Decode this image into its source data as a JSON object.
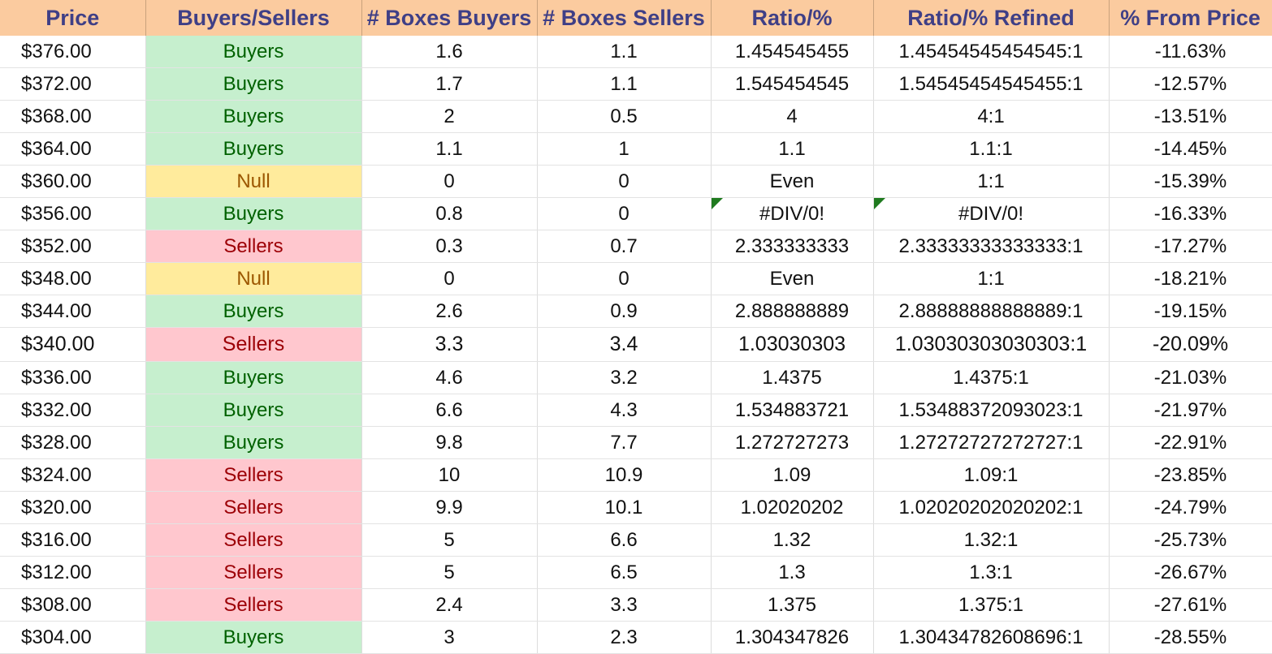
{
  "colors": {
    "header_bg": "#fbcb9f",
    "header_text": "#3f3f86",
    "buyers_bg": "#c6efce",
    "buyers_text": "#006100",
    "sellers_bg": "#ffc7ce",
    "sellers_text": "#9c0006",
    "null_bg": "#ffeb9c",
    "null_text": "#9c5700",
    "error_indicator": "#1f7a1f"
  },
  "table": {
    "headers": [
      "Price",
      "Buyers/Sellers",
      "# Boxes Buyers",
      "# Boxes Sellers",
      "Ratio/%",
      "Ratio/% Refined",
      "% From Price"
    ],
    "rows": [
      {
        "price": "$376.00",
        "side": "Buyers",
        "boxes_buyers": "1.6",
        "boxes_sellers": "1.1",
        "ratio": "1.454545455",
        "ratio_refined": "1.45454545454545:1",
        "from_price": "-11.63%"
      },
      {
        "price": "$372.00",
        "side": "Buyers",
        "boxes_buyers": "1.7",
        "boxes_sellers": "1.1",
        "ratio": "1.545454545",
        "ratio_refined": "1.54545454545455:1",
        "from_price": "-12.57%"
      },
      {
        "price": "$368.00",
        "side": "Buyers",
        "boxes_buyers": "2",
        "boxes_sellers": "0.5",
        "ratio": "4",
        "ratio_refined": "4:1",
        "from_price": "-13.51%"
      },
      {
        "price": "$364.00",
        "side": "Buyers",
        "boxes_buyers": "1.1",
        "boxes_sellers": "1",
        "ratio": "1.1",
        "ratio_refined": "1.1:1",
        "from_price": "-14.45%"
      },
      {
        "price": "$360.00",
        "side": "Null",
        "boxes_buyers": "0",
        "boxes_sellers": "0",
        "ratio": "Even",
        "ratio_refined": "1:1",
        "from_price": "-15.39%"
      },
      {
        "price": "$356.00",
        "side": "Buyers",
        "boxes_buyers": "0.8",
        "boxes_sellers": "0",
        "ratio": "#DIV/0!",
        "ratio_refined": "#DIV/0!",
        "from_price": "-16.33%",
        "error": true
      },
      {
        "price": "$352.00",
        "side": "Sellers",
        "boxes_buyers": "0.3",
        "boxes_sellers": "0.7",
        "ratio": "2.333333333",
        "ratio_refined": "2.33333333333333:1",
        "from_price": "-17.27%"
      },
      {
        "price": "$348.00",
        "side": "Null",
        "boxes_buyers": "0",
        "boxes_sellers": "0",
        "ratio": "Even",
        "ratio_refined": "1:1",
        "from_price": "-18.21%"
      },
      {
        "price": "$344.00",
        "side": "Buyers",
        "boxes_buyers": "2.6",
        "boxes_sellers": "0.9",
        "ratio": "2.888888889",
        "ratio_refined": "2.88888888888889:1",
        "from_price": "-19.15%"
      },
      {
        "price": "$340.00",
        "side": "Sellers",
        "boxes_buyers": "3.3",
        "boxes_sellers": "3.4",
        "ratio": "1.03030303",
        "ratio_refined": "1.03030303030303:1",
        "from_price": "-20.09%",
        "big": true
      },
      {
        "price": "$336.00",
        "side": "Buyers",
        "boxes_buyers": "4.6",
        "boxes_sellers": "3.2",
        "ratio": "1.4375",
        "ratio_refined": "1.4375:1",
        "from_price": "-21.03%"
      },
      {
        "price": "$332.00",
        "side": "Buyers",
        "boxes_buyers": "6.6",
        "boxes_sellers": "4.3",
        "ratio": "1.534883721",
        "ratio_refined": "1.53488372093023:1",
        "from_price": "-21.97%"
      },
      {
        "price": "$328.00",
        "side": "Buyers",
        "boxes_buyers": "9.8",
        "boxes_sellers": "7.7",
        "ratio": "1.272727273",
        "ratio_refined": "1.27272727272727:1",
        "from_price": "-22.91%"
      },
      {
        "price": "$324.00",
        "side": "Sellers",
        "boxes_buyers": "10",
        "boxes_sellers": "10.9",
        "ratio": "1.09",
        "ratio_refined": "1.09:1",
        "from_price": "-23.85%"
      },
      {
        "price": "$320.00",
        "side": "Sellers",
        "boxes_buyers": "9.9",
        "boxes_sellers": "10.1",
        "ratio": "1.02020202",
        "ratio_refined": "1.02020202020202:1",
        "from_price": "-24.79%"
      },
      {
        "price": "$316.00",
        "side": "Sellers",
        "boxes_buyers": "5",
        "boxes_sellers": "6.6",
        "ratio": "1.32",
        "ratio_refined": "1.32:1",
        "from_price": "-25.73%"
      },
      {
        "price": "$312.00",
        "side": "Sellers",
        "boxes_buyers": "5",
        "boxes_sellers": "6.5",
        "ratio": "1.3",
        "ratio_refined": "1.3:1",
        "from_price": "-26.67%"
      },
      {
        "price": "$308.00",
        "side": "Sellers",
        "boxes_buyers": "2.4",
        "boxes_sellers": "3.3",
        "ratio": "1.375",
        "ratio_refined": "1.375:1",
        "from_price": "-27.61%"
      },
      {
        "price": "$304.00",
        "side": "Buyers",
        "boxes_buyers": "3",
        "boxes_sellers": "2.3",
        "ratio": "1.304347826",
        "ratio_refined": "1.30434782608696:1",
        "from_price": "-28.55%"
      }
    ]
  }
}
